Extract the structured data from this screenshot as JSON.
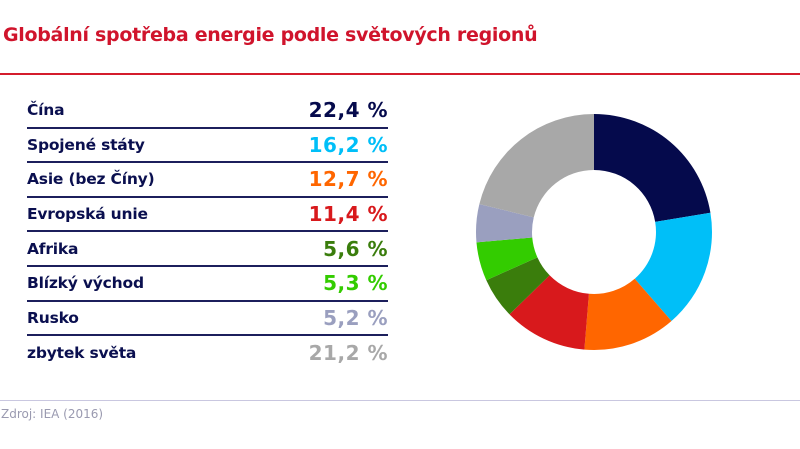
{
  "title": "Globální spotřeba energie podle světových regionů",
  "source": "Zdroj: IEA (2016)",
  "colors": {
    "title": "#d0142c",
    "title_rule": "#d41c2c",
    "label": "#0a0f4f",
    "row_rule": "#1c1f5c",
    "footer_rule": "#c9c7e0",
    "source": "#9a9ab0"
  },
  "rows": [
    {
      "label": "Čína",
      "value": "22,4 %",
      "color": "#050a4c"
    },
    {
      "label": "Spojené státy",
      "value": "16,2 %",
      "color": "#00bff8"
    },
    {
      "label": "Asie (bez Číny)",
      "value": "12,7 %",
      "color": "#ff6600"
    },
    {
      "label": "Evropská unie",
      "value": "11,4 %",
      "color": "#d8191c"
    },
    {
      "label": "Afrika",
      "value": "5,6 %",
      "color": "#3a7d0c"
    },
    {
      "label": "Blízký východ",
      "value": "5,3 %",
      "color": "#33cc00"
    },
    {
      "label": "Rusko",
      "value": "5,2 %",
      "color": "#9a9fbf"
    },
    {
      "label": "zbytek světa",
      "value": "21,2 %",
      "color": "#a8a8a8"
    }
  ],
  "chart_data": {
    "type": "pie",
    "subtype": "donut",
    "title": "Globální spotřeba energie podle světových regionů",
    "categories": [
      "Čína",
      "Spojené státy",
      "Asie (bez Číny)",
      "Evropská unie",
      "Afrika",
      "Blízký východ",
      "Rusko",
      "zbytek světa"
    ],
    "values": [
      22.4,
      16.2,
      12.7,
      11.4,
      5.6,
      5.3,
      5.2,
      21.2
    ],
    "colors": [
      "#050a4c",
      "#00bff8",
      "#ff6600",
      "#d8191c",
      "#3a7d0c",
      "#33cc00",
      "#9a9fbf",
      "#a8a8a8"
    ],
    "unit": "%",
    "start_angle": "12 o'clock, clockwise",
    "legend_position": "left (table)",
    "source": "Zdroj: IEA (2016)"
  }
}
